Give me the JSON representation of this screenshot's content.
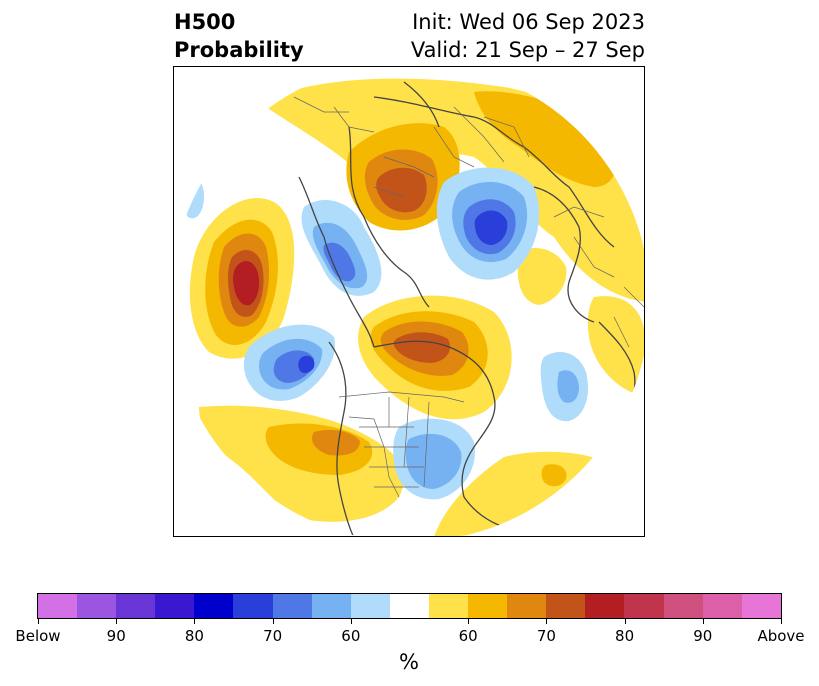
{
  "title": {
    "left_line1": "H500",
    "left_line2": "Probability",
    "right_line1": "Init: Wed 06 Sep 2023",
    "right_line2": "Valid: 21 Sep – 27 Sep"
  },
  "colorbar": {
    "unit": "%",
    "colors": [
      "#d370e6",
      "#9b55e0",
      "#6a35d6",
      "#3a18d0",
      "#0000cc",
      "#2a3fd9",
      "#4f78e6",
      "#76b1f2",
      "#aedcfa",
      "#ffffff",
      "#ffe14a",
      "#f5b800",
      "#e0870f",
      "#c2541a",
      "#b21e22",
      "#c0344e",
      "#cf4f7e",
      "#dc5faa",
      "#e675d7"
    ],
    "labels": [
      "Below",
      "90",
      "80",
      "70",
      "60",
      "60",
      "70",
      "80",
      "90",
      "Above"
    ]
  },
  "map": {
    "projection": "north-polar-stereographic",
    "variable": "500 hPa height probability",
    "anomaly_regions": [
      {
        "sign": "above",
        "max_category": "80",
        "area": "North Pacific west of Alaska"
      },
      {
        "sign": "above",
        "max_category": "70",
        "area": "Kamchatka / Sea of Okhotsk"
      },
      {
        "sign": "above",
        "max_category": "70",
        "area": "Canadian Arctic Archipelago / Baffin Bay"
      },
      {
        "sign": "above",
        "max_category": "70",
        "area": "Western United States"
      },
      {
        "sign": "above",
        "max_category": "60",
        "area": "Northern Europe / Scandinavia"
      },
      {
        "sign": "above",
        "max_category": "60",
        "area": "Siberia / Arctic Russia"
      },
      {
        "sign": "below",
        "max_category": "80",
        "area": "Gulf of Alaska / Bering region"
      },
      {
        "sign": "below",
        "max_category": "80",
        "area": "Eastern Siberia / Chukotka"
      },
      {
        "sign": "below",
        "max_category": "80",
        "area": "Northeastern Pacific off Canada"
      },
      {
        "sign": "below",
        "max_category": "60",
        "area": "Eastern United States"
      },
      {
        "sign": "below",
        "max_category": "70",
        "area": "Central Asia"
      }
    ]
  }
}
